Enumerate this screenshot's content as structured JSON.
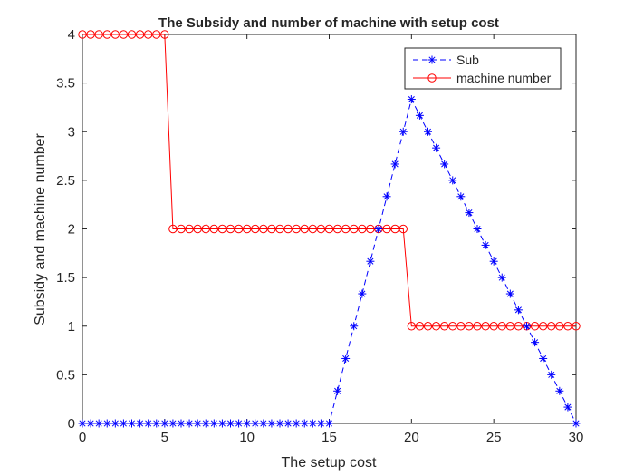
{
  "chart_data": {
    "type": "line",
    "title": "The Subsidy and number of machine with setup cost",
    "xlabel": "The setup cost",
    "ylabel": "Subsidy and machine number",
    "xlim": [
      0,
      30
    ],
    "ylim": [
      0,
      4
    ],
    "x_ticks": [
      0,
      5,
      10,
      15,
      20,
      25,
      30
    ],
    "y_ticks": [
      0,
      0.5,
      1,
      1.5,
      2,
      2.5,
      3,
      3.5,
      4
    ],
    "x_tick_labels": [
      "0",
      "5",
      "10",
      "15",
      "20",
      "25",
      "30"
    ],
    "y_tick_labels": [
      "0",
      "0.5",
      "1",
      "1.5",
      "2",
      "2.5",
      "3",
      "3.5",
      "4"
    ],
    "grid": false,
    "legend_position": "top-right",
    "x": [
      0,
      0.5,
      1,
      1.5,
      2,
      2.5,
      3,
      3.5,
      4,
      4.5,
      5,
      5.5,
      6,
      6.5,
      7,
      7.5,
      8,
      8.5,
      9,
      9.5,
      10,
      10.5,
      11,
      11.5,
      12,
      12.5,
      13,
      13.5,
      14,
      14.5,
      15,
      15.5,
      16,
      16.5,
      17,
      17.5,
      18,
      18.5,
      19,
      19.5,
      20,
      20.5,
      21,
      21.5,
      22,
      22.5,
      23,
      23.5,
      24,
      24.5,
      25,
      25.5,
      26,
      26.5,
      27,
      27.5,
      28,
      28.5,
      29,
      29.5,
      30
    ],
    "series": [
      {
        "name": "Sub",
        "color": "#0000ff",
        "line_style": "dashed",
        "marker": "asterisk",
        "values": [
          0,
          0,
          0,
          0,
          0,
          0,
          0,
          0,
          0,
          0,
          0,
          0,
          0,
          0,
          0,
          0,
          0,
          0,
          0,
          0,
          0,
          0,
          0,
          0,
          0,
          0,
          0,
          0,
          0,
          0,
          0,
          0.333,
          0.667,
          1,
          1.333,
          1.667,
          2,
          2.333,
          2.667,
          3,
          3.333,
          3.167,
          3,
          2.833,
          2.667,
          2.5,
          2.333,
          2.167,
          2,
          1.833,
          1.667,
          1.5,
          1.333,
          1.167,
          1,
          0.833,
          0.667,
          0.5,
          0.333,
          0.167,
          0
        ]
      },
      {
        "name": "machine number",
        "color": "#ff0000",
        "line_style": "solid",
        "marker": "circle",
        "values": [
          4,
          4,
          4,
          4,
          4,
          4,
          4,
          4,
          4,
          4,
          4,
          2,
          2,
          2,
          2,
          2,
          2,
          2,
          2,
          2,
          2,
          2,
          2,
          2,
          2,
          2,
          2,
          2,
          2,
          2,
          2,
          2,
          2,
          2,
          2,
          2,
          2,
          2,
          2,
          2,
          1,
          1,
          1,
          1,
          1,
          1,
          1,
          1,
          1,
          1,
          1,
          1,
          1,
          1,
          1,
          1,
          1,
          1,
          1,
          1,
          1
        ]
      }
    ]
  }
}
